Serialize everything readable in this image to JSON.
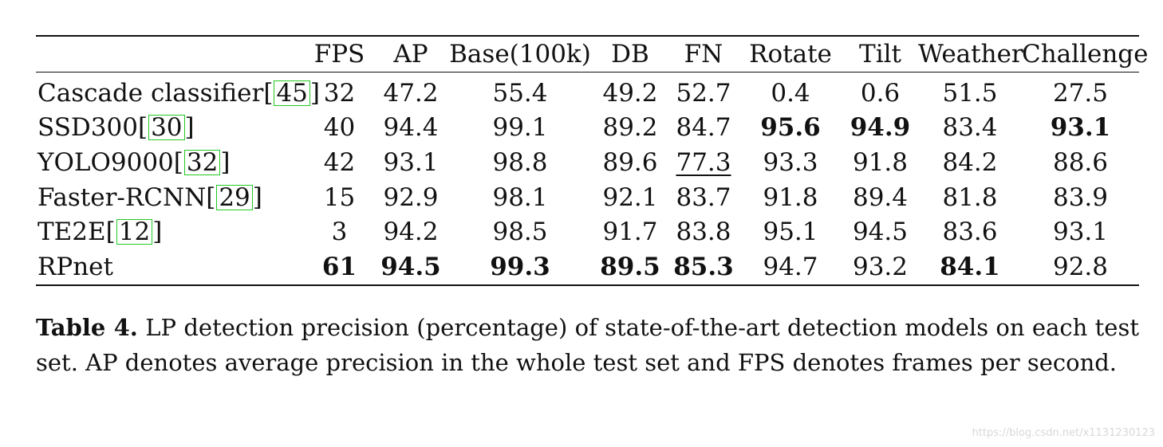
{
  "table": {
    "headers": [
      "",
      "FPS",
      "AP",
      "Base(100k)",
      "DB",
      "FN",
      "Rotate",
      "Tilt",
      "Weather",
      "Challenge"
    ],
    "rows": [
      {
        "model": "Cascade classifier",
        "ref": "45",
        "cells": [
          {
            "v": "32"
          },
          {
            "v": "47.2"
          },
          {
            "v": "55.4"
          },
          {
            "v": "49.2"
          },
          {
            "v": "52.7"
          },
          {
            "v": "0.4"
          },
          {
            "v": "0.6"
          },
          {
            "v": "51.5"
          },
          {
            "v": "27.5"
          }
        ]
      },
      {
        "model": "SSD300",
        "ref": "30",
        "cells": [
          {
            "v": "40"
          },
          {
            "v": "94.4"
          },
          {
            "v": "99.1"
          },
          {
            "v": "89.2"
          },
          {
            "v": "84.7"
          },
          {
            "v": "95.6",
            "bold": true
          },
          {
            "v": "94.9",
            "bold": true
          },
          {
            "v": "83.4"
          },
          {
            "v": "93.1",
            "bold": true
          }
        ]
      },
      {
        "model": "YOLO9000",
        "ref": "32",
        "cells": [
          {
            "v": "42"
          },
          {
            "v": "93.1"
          },
          {
            "v": "98.8"
          },
          {
            "v": "89.6"
          },
          {
            "v": "77.3",
            "underline": true
          },
          {
            "v": "93.3"
          },
          {
            "v": "91.8"
          },
          {
            "v": "84.2"
          },
          {
            "v": "88.6"
          }
        ]
      },
      {
        "model": "Faster-RCNN",
        "ref": "29",
        "cells": [
          {
            "v": "15"
          },
          {
            "v": "92.9"
          },
          {
            "v": "98.1"
          },
          {
            "v": "92.1"
          },
          {
            "v": "83.7"
          },
          {
            "v": "91.8"
          },
          {
            "v": "89.4"
          },
          {
            "v": "81.8"
          },
          {
            "v": "83.9"
          }
        ]
      },
      {
        "model": "TE2E",
        "ref": "12",
        "cells": [
          {
            "v": "3"
          },
          {
            "v": "94.2"
          },
          {
            "v": "98.5"
          },
          {
            "v": "91.7"
          },
          {
            "v": "83.8"
          },
          {
            "v": "95.1"
          },
          {
            "v": "94.5"
          },
          {
            "v": "83.6"
          },
          {
            "v": "93.1"
          }
        ]
      },
      {
        "model": "RPnet",
        "ref": "",
        "cells": [
          {
            "v": "61",
            "bold": true
          },
          {
            "v": "94.5",
            "bold": true
          },
          {
            "v": "99.3",
            "bold": true
          },
          {
            "v": "89.5",
            "bold": true
          },
          {
            "v": "85.3",
            "bold": true
          },
          {
            "v": "94.7"
          },
          {
            "v": "93.2"
          },
          {
            "v": "84.1",
            "bold": true
          },
          {
            "v": "92.8"
          }
        ]
      }
    ]
  },
  "caption": {
    "label": "Table 4.",
    "text": "LP detection precision (percentage) of state-of-the-art detection models on each test set. AP denotes average precision in the whole test set and FPS denotes frames per second."
  },
  "watermark": "https://blog.csdn.net/x1131230123",
  "colors": {
    "ref_box": "#22c922",
    "text": "#111111"
  }
}
